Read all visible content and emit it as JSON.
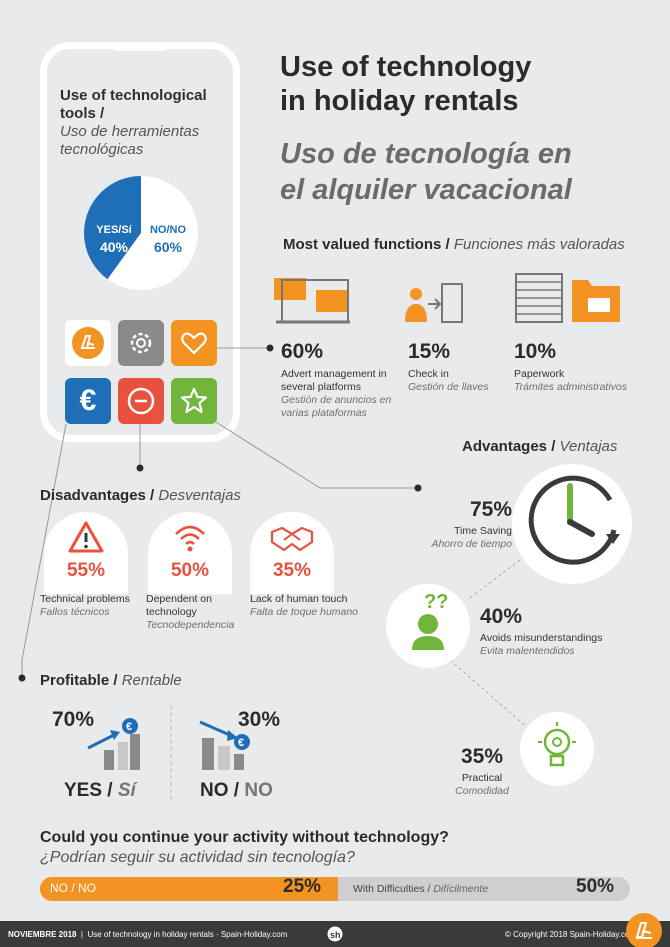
{
  "phone": {
    "title_en": "Use of technological tools /",
    "title_es": "Uso de herramientas tecnológicas",
    "pie": {
      "yes_label": "YES/Sí",
      "yes_value": "40%",
      "no_label": "NO/NO",
      "no_value": "60%",
      "yes_fraction": 0.4
    }
  },
  "title": {
    "en_line1": "Use of technology",
    "en_line2": "in holiday rentals",
    "es_line1": "Uso de tecnología en",
    "es_line2": "el alquiler vacacional"
  },
  "functions": {
    "heading_en": "Most valued functions /",
    "heading_es": "Funciones más valoradas",
    "items": [
      {
        "pct": "60%",
        "en": "Advert management in several platforms",
        "es": "Gestión de anuncios en varias plataformas"
      },
      {
        "pct": "15%",
        "en": "Check in",
        "es": "Gestión de llaves"
      },
      {
        "pct": "10%",
        "en": "Paperwork",
        "es": "Trámites administrativos"
      }
    ]
  },
  "advantages": {
    "heading_en": "Advantages /",
    "heading_es": "Ventajas",
    "items": [
      {
        "pct": "75%",
        "en": "Time Saving",
        "es": "Ahorro de tiempo"
      },
      {
        "pct": "40%",
        "en": "Avoids misunderstandings",
        "es": "Evita malentendidos"
      },
      {
        "pct": "35%",
        "en": "Practical",
        "es": "Comodidad"
      }
    ]
  },
  "disadvantages": {
    "heading_en": "Disadvantages /",
    "heading_es": "Desventajas",
    "items": [
      {
        "pct": "55%",
        "en": "Technical problems",
        "es": "Fallos técnicos"
      },
      {
        "pct": "50%",
        "en": "Dependent on technology",
        "es": "Tecnodependencia"
      },
      {
        "pct": "35%",
        "en": "Lack of human touch",
        "es": "Falta de toque humano"
      }
    ]
  },
  "profitable": {
    "heading_en": "Profitable /",
    "heading_es": "Rentable",
    "yes": {
      "pct": "70%",
      "en": "YES",
      "es": "Sí"
    },
    "no": {
      "pct": "30%",
      "en": "NO",
      "es": "NO"
    }
  },
  "continue": {
    "q_en": "Could you continue your activity without technology?",
    "q_es": "¿Podrían seguir su actividad sin tecnología?",
    "no_label": "NO / NO",
    "no_pct": "25%",
    "diff_en": "With Difficulties /",
    "diff_es": "Difícilmente",
    "diff_pct": "50%"
  },
  "footer": {
    "date": "NOVIEMBRE 2018",
    "text": "Use of technology in holiday rentals · Spain-Holiday.com",
    "copyright": "© Copyright 2018 Spain-Holiday.com"
  },
  "colors": {
    "orange": "#f39322",
    "blue": "#1e6fb7",
    "red": "#e8513e",
    "green": "#72b53b",
    "grey": "#8a8a8a"
  }
}
